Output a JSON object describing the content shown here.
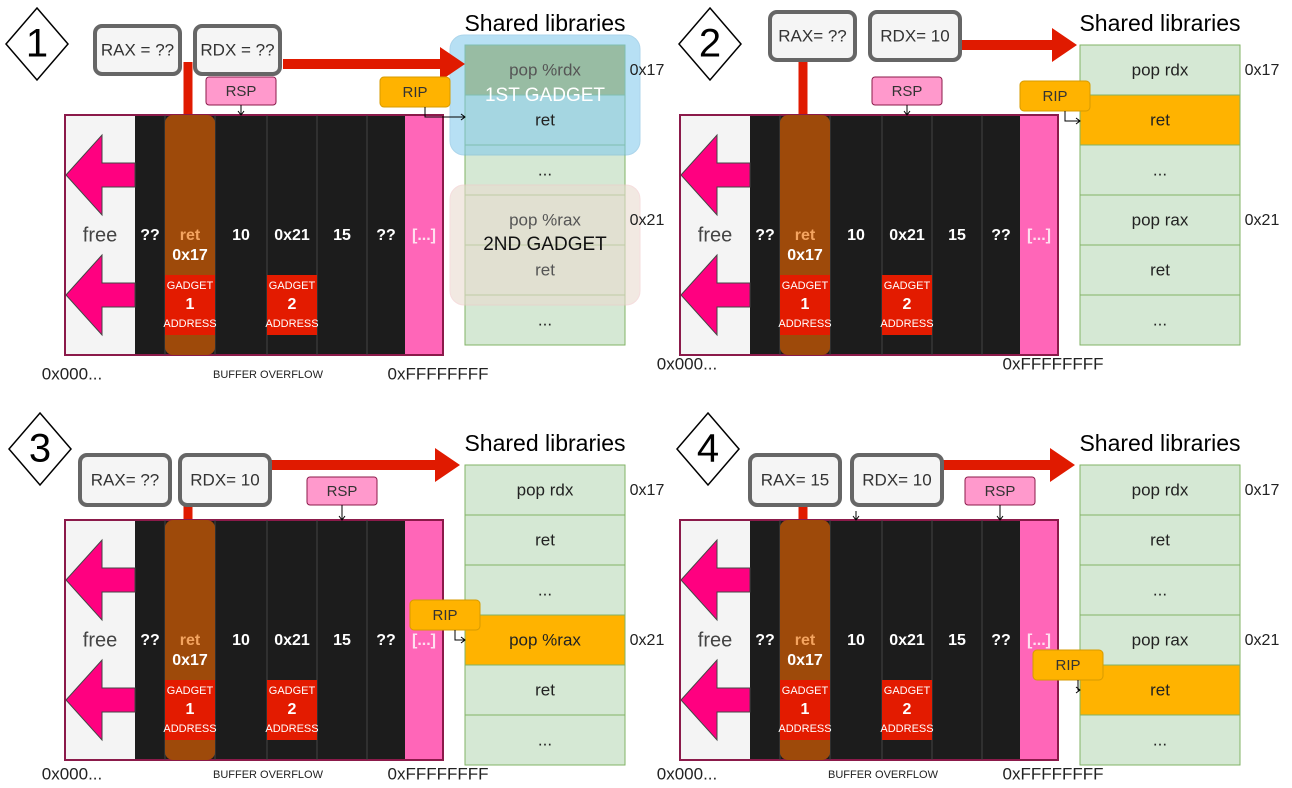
{
  "colors": {
    "red_arrow": "#e01a00",
    "stack_border": "#8b1a4a",
    "stack_cell": "#1c1c1c",
    "ret_cell": "#9e4a0a",
    "gadget_box": "#e31b00",
    "pink": "#ff66b8",
    "pink_arrow": "#ff0080",
    "library": "#d5e8d4",
    "library_border": "#82b366",
    "highlight": "#ffb300",
    "register_box": "#f5f5f5",
    "rsp_box": "#ff99cc"
  },
  "panels": [
    {
      "step": "1",
      "rax": "RAX = ??",
      "rdx": "RDX = ??",
      "rsp_label": "RSP",
      "rip_label": "RIP",
      "library_title": "Shared libraries",
      "library_rows": [
        "pop %rdx",
        "ret",
        "...",
        "pop %rax",
        "ret",
        "..."
      ],
      "library_addresses": [
        "0x17",
        "0x21"
      ],
      "gadget_overlays": [
        "1ST GADGET",
        "2ND GADGET"
      ],
      "highlight_row": 0,
      "free_label": "free",
      "stack_cells": [
        "??",
        "ret",
        "10",
        "0x21",
        "15",
        "??",
        "[...]"
      ],
      "ret_value": "0x17",
      "gadget_labels": [
        {
          "top": "GADGET",
          "num": "1",
          "bottom": "ADDRESS"
        },
        {
          "top": "GADGET",
          "num": "2",
          "bottom": "ADDRESS"
        }
      ],
      "low_address": "0x000...",
      "buffer_label": "BUFFER OVERFLOW",
      "high_address": "0xFFFFFFFF"
    },
    {
      "step": "2",
      "rax": "RAX= ??",
      "rdx": "RDX= 10",
      "rsp_label": "RSP",
      "rip_label": "RIP",
      "library_title": "Shared libraries",
      "library_rows": [
        "pop rdx",
        "ret",
        "...",
        "pop rax",
        "ret",
        "..."
      ],
      "library_addresses": [
        "0x17",
        "0x21"
      ],
      "highlight_row": 1,
      "free_label": "free",
      "stack_cells": [
        "??",
        "ret",
        "10",
        "0x21",
        "15",
        "??",
        "[...]"
      ],
      "ret_value": "0x17",
      "gadget_labels": [
        {
          "top": "GADGET",
          "num": "1",
          "bottom": "ADDRESS"
        },
        {
          "top": "GADGET",
          "num": "2",
          "bottom": "ADDRESS"
        }
      ],
      "low_address": "0x000...",
      "high_address": "0xFFFFFFFF"
    },
    {
      "step": "3",
      "rax": "RAX= ??",
      "rdx": "RDX= 10",
      "rsp_label": "RSP",
      "rip_label": "RIP",
      "library_title": "Shared libraries",
      "library_rows": [
        "pop rdx",
        "ret",
        "...",
        "pop %rax",
        "ret",
        "..."
      ],
      "library_addresses": [
        "0x17",
        "0x21"
      ],
      "highlight_row": 3,
      "free_label": "free",
      "stack_cells": [
        "??",
        "ret",
        "10",
        "0x21",
        "15",
        "??",
        "[...]"
      ],
      "ret_value": "0x17",
      "gadget_labels": [
        {
          "top": "GADGET",
          "num": "1",
          "bottom": "ADDRESS"
        },
        {
          "top": "GADGET",
          "num": "2",
          "bottom": "ADDRESS"
        }
      ],
      "low_address": "0x000...",
      "buffer_label": "BUFFER OVERFLOW",
      "high_address": "0xFFFFFFFF"
    },
    {
      "step": "4",
      "rax": "RAX= 15",
      "rdx": "RDX= 10",
      "rsp_label": "RSP",
      "rip_label": "RIP",
      "library_title": "Shared libraries",
      "library_rows": [
        "pop rdx",
        "ret",
        "...",
        "pop rax",
        "ret",
        "..."
      ],
      "library_addresses": [
        "0x17",
        "0x21"
      ],
      "highlight_row": 4,
      "free_label": "free",
      "stack_cells": [
        "??",
        "ret",
        "10",
        "0x21",
        "15",
        "??",
        "[...]"
      ],
      "ret_value": "0x17",
      "gadget_labels": [
        {
          "top": "GADGET",
          "num": "1",
          "bottom": "ADDRESS"
        },
        {
          "top": "GADGET",
          "num": "2",
          "bottom": "ADDRESS"
        }
      ],
      "low_address": "0x000...",
      "buffer_label": "BUFFER OVERFLOW",
      "high_address": "0xFFFFFFFF"
    }
  ]
}
